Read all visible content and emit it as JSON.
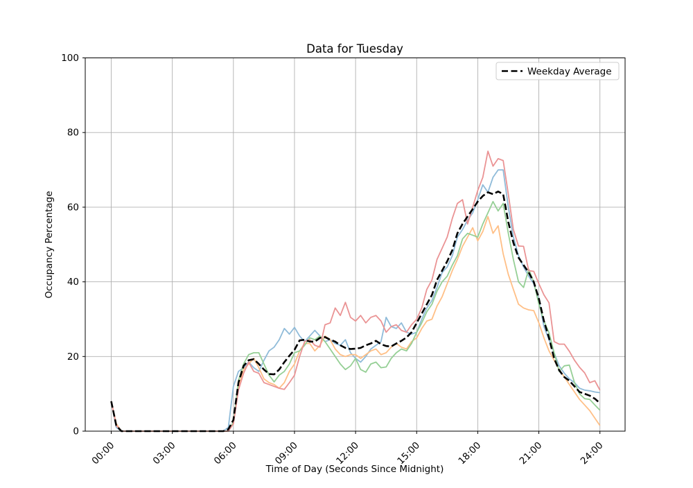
{
  "chart_data": {
    "type": "line",
    "title": "Data for Tuesday",
    "xlabel": "Time of Day (Seconds Since Midnight)",
    "ylabel": "Occupancy Percentage",
    "ylim": [
      0,
      100
    ],
    "grid": true,
    "grid_color": "#b0b0b0",
    "x_interval_seconds": 900,
    "xticks": {
      "seconds": [
        0,
        10800,
        21600,
        32400,
        43200,
        54000,
        64800,
        75600,
        86400
      ],
      "labels": [
        "00:00",
        "03:00",
        "06:00",
        "09:00",
        "12:00",
        "15:00",
        "18:00",
        "21:00",
        "24:00"
      ]
    },
    "yticks": [
      0,
      20,
      40,
      60,
      80,
      100
    ],
    "legend": {
      "label": "Weekday Average",
      "position": "upper right"
    },
    "series": [
      {
        "name": "line-1",
        "color": "#8fbbd9",
        "dash": "solid",
        "width": 1.8,
        "values": [
          8,
          1,
          0,
          0,
          0,
          0,
          0,
          0,
          0,
          0,
          0,
          0,
          0,
          0,
          0,
          0,
          0,
          0,
          0,
          0,
          0,
          0,
          0,
          1,
          12,
          16,
          17,
          18.5,
          17,
          16,
          19,
          21.5,
          22.5,
          24.5,
          27.5,
          26,
          27.8,
          25.5,
          24,
          25.5,
          27,
          25.5,
          24,
          24.5,
          23.5,
          23,
          24.5,
          21,
          19.5,
          18.5,
          20,
          22,
          23,
          24,
          30.5,
          28,
          27.5,
          29,
          26.5,
          26,
          26.5,
          30,
          33,
          35,
          38.5,
          42.5,
          44,
          47,
          52,
          54,
          56.5,
          58.5,
          62,
          66,
          64,
          68,
          70,
          70,
          60,
          52,
          47,
          44,
          41.5,
          39.5,
          35,
          28,
          24.5,
          21,
          17.5,
          15.5,
          14,
          13,
          11.5,
          11,
          10.8,
          10.5,
          10.3
        ]
      },
      {
        "name": "line-2",
        "color": "#ffbf86",
        "dash": "solid",
        "width": 1.8,
        "values": [
          8,
          2,
          0,
          0,
          0,
          0,
          0,
          0,
          0,
          0,
          0,
          0,
          0,
          0,
          0,
          0,
          0,
          0,
          0,
          0,
          0,
          0,
          0,
          0,
          2,
          12,
          16.5,
          18,
          19.5,
          17,
          14,
          13,
          12.5,
          11.5,
          13,
          16,
          18,
          21.5,
          23.5,
          23.5,
          21.5,
          23,
          25.5,
          24.5,
          22,
          20.5,
          20,
          20.5,
          20.5,
          19.5,
          20.5,
          21.5,
          22,
          20.5,
          21,
          22.5,
          23.5,
          22.5,
          22,
          24,
          25,
          27.5,
          29.5,
          30,
          33.5,
          36,
          39.5,
          43,
          46,
          49.5,
          52,
          54.5,
          51,
          53.5,
          57.5,
          53,
          55,
          47.5,
          42,
          38,
          34,
          33,
          32.5,
          32.3,
          29,
          25,
          21.5,
          19,
          16.5,
          14.5,
          12.5,
          10.5,
          8.5,
          7,
          5.5,
          3.5,
          1.5
        ]
      },
      {
        "name": "line-3",
        "color": "#95cf95",
        "dash": "solid",
        "width": 1.8,
        "values": [
          8,
          1.5,
          0,
          0,
          0,
          0,
          0,
          0,
          0,
          0,
          0,
          0,
          0,
          0,
          0,
          0,
          0,
          0,
          0,
          0,
          0,
          0,
          0,
          0,
          2.5,
          13.5,
          18,
          20.5,
          21,
          21,
          18,
          15,
          13.2,
          15,
          16,
          18,
          21,
          21.5,
          23,
          25,
          24.5,
          25.5,
          24,
          22,
          20,
          18,
          16.5,
          17.5,
          19.5,
          16.5,
          15.8,
          18,
          18.5,
          17,
          17.2,
          19.5,
          21,
          22,
          21.5,
          23.5,
          26.5,
          29,
          32,
          34,
          37.5,
          40,
          41.5,
          44.5,
          47,
          51.5,
          53,
          52.5,
          52,
          55.5,
          58.5,
          61.5,
          59,
          61,
          53,
          46,
          40,
          38.5,
          43.4,
          40,
          34,
          29.5,
          26.4,
          21,
          16,
          17.5,
          17.7,
          13,
          10,
          8.7,
          8.5,
          7,
          5.6
        ]
      },
      {
        "name": "line-4",
        "color": "#ea9394",
        "dash": "solid",
        "width": 1.8,
        "values": [
          8,
          1.5,
          0,
          0,
          0,
          0,
          0,
          0,
          0,
          0,
          0,
          0,
          0,
          0,
          0,
          0,
          0,
          0,
          0,
          0,
          0,
          0,
          0,
          0,
          2,
          11,
          15.5,
          18.5,
          16,
          15.5,
          13,
          12.5,
          12,
          11.5,
          11.2,
          13,
          15,
          20,
          24,
          24.5,
          23,
          22.5,
          28.5,
          29,
          33,
          31,
          34.5,
          30.5,
          29.5,
          31,
          29,
          30.5,
          31,
          29.5,
          26.5,
          28,
          28.5,
          27,
          26.5,
          28.5,
          30,
          33,
          38,
          40.5,
          46,
          49,
          52,
          57,
          61,
          62,
          55.5,
          60,
          64.5,
          68,
          75,
          71,
          73,
          72.5,
          63.5,
          54,
          49.6,
          49.5,
          43,
          42.8,
          39.5,
          36.5,
          34.4,
          24,
          23.3,
          23.3,
          21.4,
          19,
          17.1,
          15.6,
          13,
          13.5,
          11
        ]
      },
      {
        "name": "weekday-average",
        "color": "#000000",
        "dash": "dashed",
        "width": 2.6,
        "values": [
          8,
          1.5,
          0,
          0,
          0,
          0,
          0,
          0,
          0,
          0,
          0,
          0,
          0,
          0,
          0,
          0,
          0,
          0,
          0,
          0,
          0,
          0,
          0,
          0.5,
          3,
          13,
          17.5,
          19,
          19.3,
          18,
          16.5,
          15.3,
          15.2,
          16.5,
          18.5,
          20.2,
          21.8,
          24.3,
          24.5,
          24,
          24,
          25,
          25.2,
          24.5,
          24,
          23,
          22.3,
          22,
          22.1,
          22.3,
          23,
          23.5,
          24.2,
          23.3,
          22.8,
          22.7,
          23.5,
          24.2,
          25.1,
          26.5,
          29,
          31.5,
          34,
          36.5,
          40.5,
          43,
          45.5,
          48.5,
          53,
          55.5,
          57.5,
          59.5,
          61.5,
          63,
          64,
          63.5,
          64.2,
          63.5,
          56,
          50.5,
          46.5,
          44.5,
          42.5,
          40,
          35.5,
          29.5,
          25,
          19.5,
          16.3,
          14.5,
          13.5,
          12,
          10.5,
          10,
          9.5,
          8.7,
          7.5
        ]
      }
    ]
  }
}
